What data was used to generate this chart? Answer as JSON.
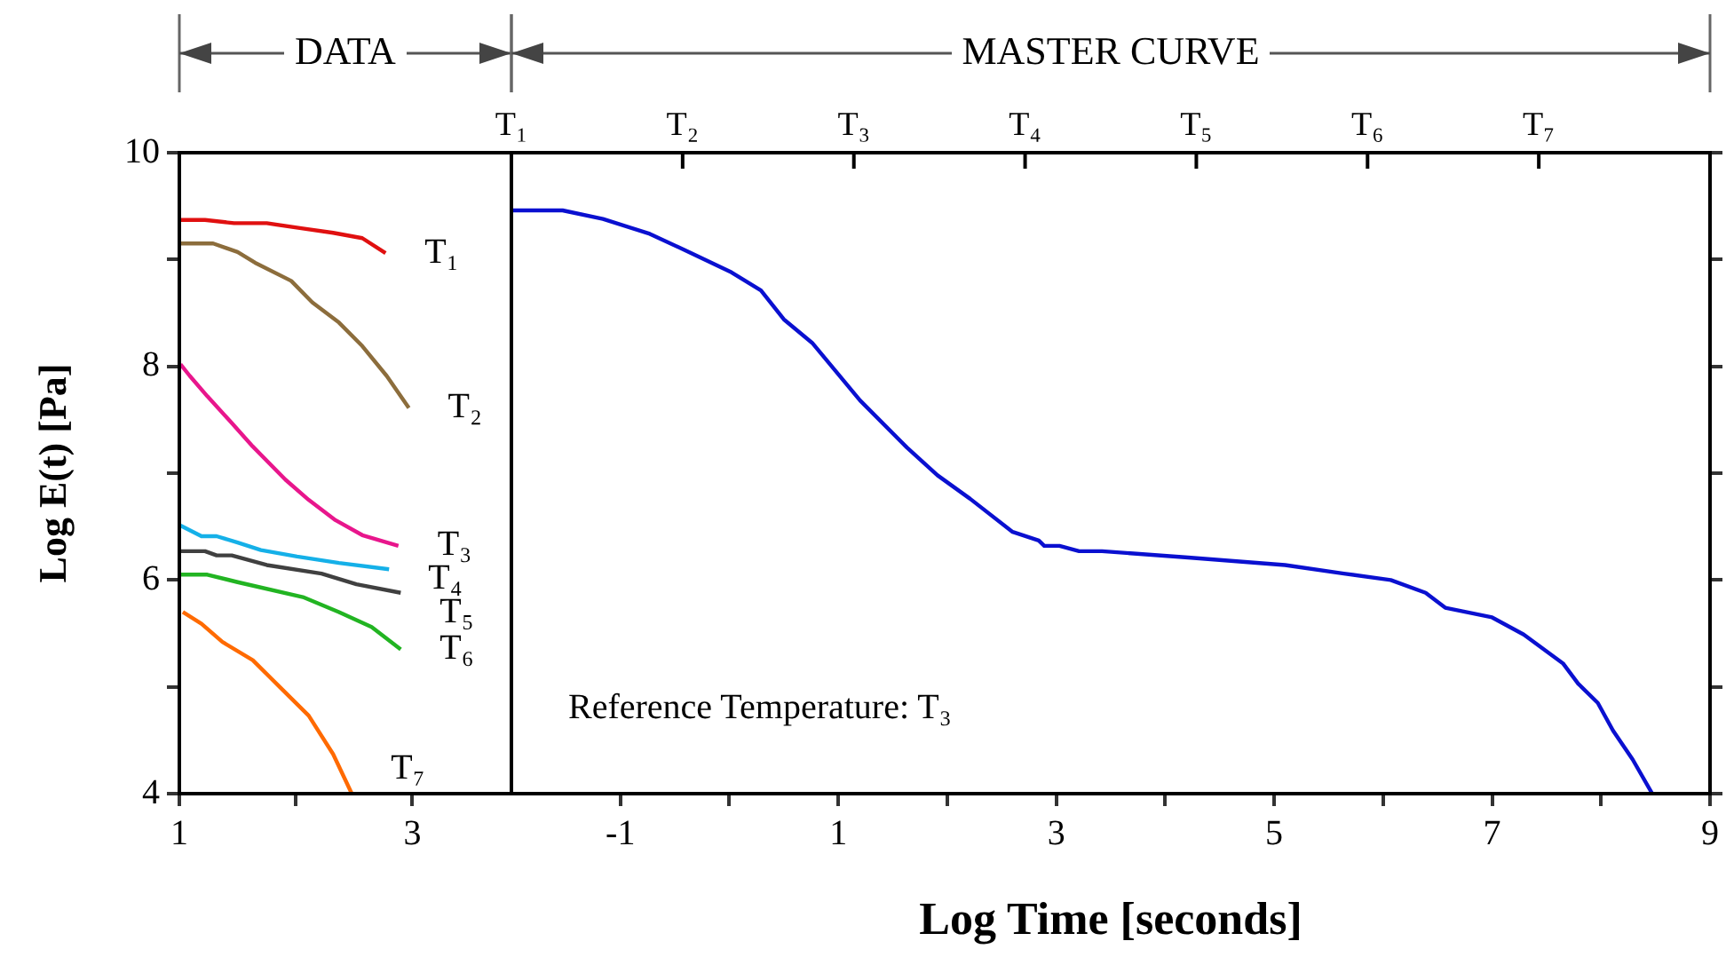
{
  "chart_data": [
    {
      "type": "line",
      "ylabel": "Log E(t) [Pa]",
      "annotations": [
        "DATA"
      ],
      "xlim": [
        1,
        3.85
      ],
      "xticks": [
        1,
        {
          "value": 2,
          "label": null
        },
        3
      ],
      "ylim": [
        4,
        10
      ],
      "yticks": [
        4,
        {
          "value": 5,
          "label": null
        },
        6,
        {
          "value": 7,
          "label": null
        },
        8,
        {
          "value": 9,
          "label": null
        },
        10
      ],
      "series": [
        {
          "name": "T₁",
          "color": "#e01010",
          "x": [
            1.01,
            1.22,
            1.47,
            1.75,
            2.06,
            2.32,
            2.57,
            2.77
          ],
          "values": [
            9.37,
            9.37,
            9.34,
            9.34,
            9.29,
            9.25,
            9.2,
            9.06
          ]
        },
        {
          "name": "T₂",
          "color": "#8c6d3c",
          "x": [
            1.01,
            1.29,
            1.5,
            1.65,
            1.96,
            2.14,
            2.37,
            2.57,
            2.78,
            2.97
          ],
          "values": [
            9.15,
            9.15,
            9.07,
            8.97,
            8.8,
            8.6,
            8.41,
            8.19,
            7.91,
            7.61
          ]
        },
        {
          "name": "T₃",
          "color": "#e8168c",
          "x": [
            1.01,
            1.09,
            1.24,
            1.45,
            1.63,
            1.91,
            2.11,
            2.34,
            2.57,
            2.88
          ],
          "values": [
            8.02,
            7.91,
            7.72,
            7.47,
            7.25,
            6.94,
            6.75,
            6.56,
            6.42,
            6.32
          ]
        },
        {
          "name": "T₄",
          "color": "#15b0e8",
          "x": [
            1.01,
            1.19,
            1.32,
            1.5,
            1.7,
            2.01,
            2.37,
            2.8
          ],
          "values": [
            6.51,
            6.41,
            6.41,
            6.35,
            6.28,
            6.22,
            6.16,
            6.1
          ]
        },
        {
          "name": "T₅",
          "color": "#404040",
          "x": [
            1.01,
            1.22,
            1.32,
            1.45,
            1.75,
            2.22,
            2.52,
            2.9
          ],
          "values": [
            6.27,
            6.27,
            6.23,
            6.23,
            6.14,
            6.06,
            5.96,
            5.88
          ]
        },
        {
          "name": "T₆",
          "color": "#22b422",
          "x": [
            1.01,
            1.24,
            1.5,
            2.06,
            2.37,
            2.65,
            2.9
          ],
          "values": [
            6.05,
            6.05,
            5.98,
            5.84,
            5.7,
            5.56,
            5.35
          ]
        },
        {
          "name": "T₇",
          "color": "#ff6a00",
          "x": [
            1.03,
            1.19,
            1.37,
            1.63,
            1.86,
            2.11,
            2.32,
            2.48
          ],
          "values": [
            5.7,
            5.59,
            5.42,
            5.25,
            5.0,
            4.73,
            4.37,
            4.0
          ]
        }
      ]
    },
    {
      "type": "line",
      "xlabel": "Log Time [seconds]",
      "annotations": [
        "MASTER CURVE",
        "Reference Temperature: T₃",
        "T₁",
        "T₂",
        "T₃",
        "T₄",
        "T₅",
        "T₆",
        "T₇"
      ],
      "tick_labels": "x",
      "xlim": [
        -2,
        9
      ],
      "xticks": [
        -1,
        {
          "value": 0,
          "label": null
        },
        1,
        {
          "value": 2,
          "label": null
        },
        3,
        {
          "value": 4,
          "label": null
        },
        5,
        {
          "value": 6,
          "label": null
        },
        7,
        {
          "value": 8,
          "label": null
        },
        9
      ],
      "ylim": [
        4,
        10
      ],
      "yticks": [
        {
          "value": 4,
          "label": null
        },
        {
          "value": 5,
          "label": null
        },
        {
          "value": 6,
          "label": null
        },
        {
          "value": 7,
          "label": null
        },
        {
          "value": 8,
          "label": null
        },
        {
          "value": 9,
          "label": null
        },
        {
          "value": 10,
          "label": null
        }
      ],
      "series": [
        {
          "color": "#0a10d0",
          "x": [
            -2.0,
            -1.53,
            -1.16,
            -0.73,
            -0.37,
            0.02,
            0.29,
            0.5,
            0.76,
            1.2,
            1.63,
            1.91,
            2.21,
            2.6,
            2.84,
            2.89,
            3.03,
            3.21,
            3.42,
            4.21,
            5.1,
            5.64,
            6.07,
            6.39,
            6.57,
            7.0,
            7.29,
            7.65,
            7.79,
            7.97,
            8.11,
            8.29,
            8.47
          ],
          "values": [
            9.46,
            9.46,
            9.38,
            9.24,
            9.07,
            8.88,
            8.71,
            8.44,
            8.22,
            7.68,
            7.24,
            6.98,
            6.76,
            6.45,
            6.37,
            6.32,
            6.32,
            6.27,
            6.27,
            6.21,
            6.14,
            6.06,
            6.0,
            5.88,
            5.74,
            5.65,
            5.49,
            5.22,
            5.03,
            4.85,
            4.59,
            4.32,
            4.0
          ]
        }
      ]
    }
  ]
}
